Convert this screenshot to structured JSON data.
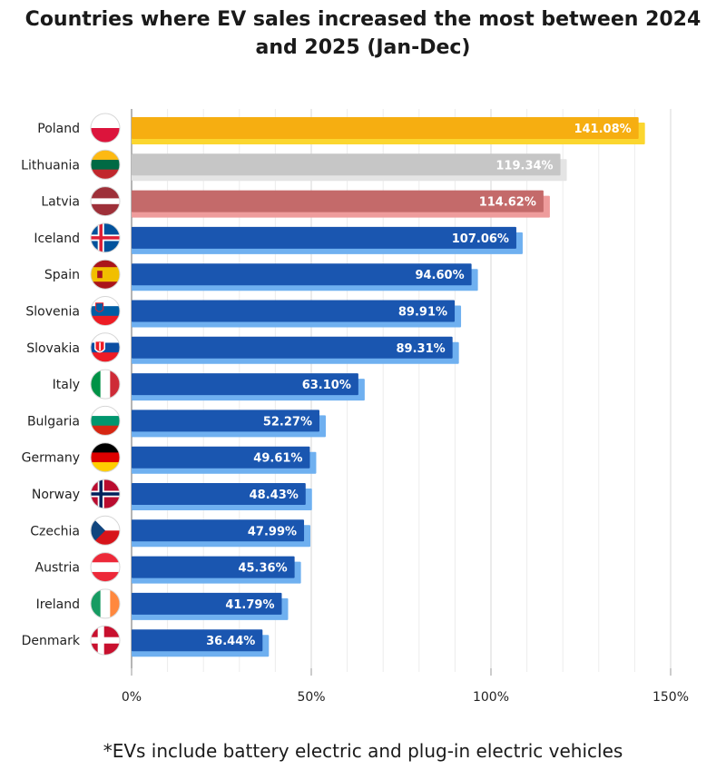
{
  "title_line1": "Countries where EV sales increased the most between 2024",
  "title_line2": "and 2025 (Jan-Dec)",
  "footnote": "*EVs include battery electric and plug-in electric vehicles",
  "colors": {
    "top1": "#F6AE11",
    "top1_shadow": "#FBD62F",
    "top2": "#C6C6C6",
    "top2_shadow": "#E4E4E4",
    "top3": "#C46A6A",
    "top3_shadow": "#EE9C9C",
    "default": "#1A56B0",
    "default_shadow": "#6FB0F0"
  },
  "chart_data": {
    "type": "bar",
    "orientation": "horizontal",
    "title": "Countries where EV sales increased the most between 2024 and 2025 (Jan-Dec)",
    "categories": [
      "Poland",
      "Lithuania",
      "Latvia",
      "Iceland",
      "Spain",
      "Slovenia",
      "Slovakia",
      "Italy",
      "Bulgaria",
      "Germany",
      "Norway",
      "Czechia",
      "Austria",
      "Ireland",
      "Denmark"
    ],
    "values": [
      141.08,
      119.34,
      114.62,
      107.06,
      94.6,
      89.91,
      89.31,
      63.1,
      52.27,
      49.61,
      48.43,
      47.99,
      45.36,
      41.79,
      36.44
    ],
    "data_labels": [
      "141.08%",
      "119.34%",
      "114.62%",
      "107.06%",
      "94.60%",
      "89.91%",
      "89.31%",
      "63.10%",
      "52.27%",
      "49.61%",
      "48.43%",
      "47.99%",
      "45.36%",
      "41.79%",
      "36.44%"
    ],
    "xlim": [
      0,
      150
    ],
    "x_ticks": [
      0,
      50,
      100,
      150
    ],
    "x_tick_labels": [
      "0%",
      "50%",
      "100%",
      "150%"
    ],
    "grid": true,
    "icons": [
      "flag-poland",
      "flag-lithuania",
      "flag-latvia",
      "flag-iceland",
      "flag-spain",
      "flag-slovenia",
      "flag-slovakia",
      "flag-italy",
      "flag-bulgaria",
      "flag-germany",
      "flag-norway",
      "flag-czechia",
      "flag-austria",
      "flag-ireland",
      "flag-denmark"
    ]
  }
}
